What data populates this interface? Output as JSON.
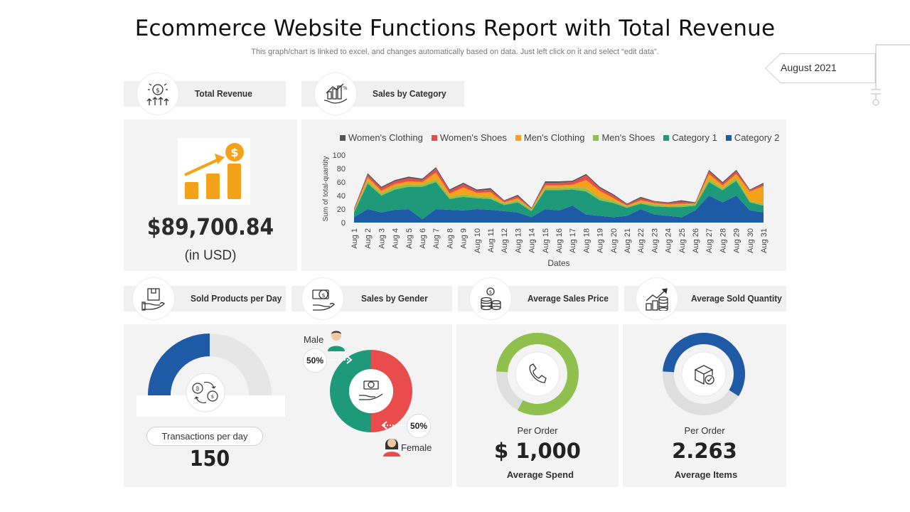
{
  "header": {
    "title": "Ecommerce Website Functions Report with Total Revenue",
    "subtitle": "This graph/chart is linked to excel, and changes automatically based on data. Just left click on it and select “edit data”.",
    "date_tag": "August 2021"
  },
  "sections": {
    "total_revenue": "Total Revenue",
    "sales_by_category": "Sales by Category",
    "sold_products_per_day": "Sold Products per Day",
    "sales_by_gender": "Sales by Gender",
    "average_sales_price": "Average Sales Price",
    "average_sold_quantity": "Average Sold Quantity"
  },
  "revenue": {
    "value": "$89,700.84",
    "unit": "(in USD)"
  },
  "transactions": {
    "label": "Transactions per day",
    "value": "150",
    "gauge_fraction": 0.5
  },
  "gender": {
    "male_label": "Male",
    "male_pct": "50%",
    "male_value": 50,
    "female_label": "Female",
    "female_pct": "50%",
    "female_value": 50,
    "colors": {
      "male": "#1e9a7a",
      "female": "#e84c4c"
    }
  },
  "avg_price": {
    "per": "Per Order",
    "value": "$ 1,000",
    "label": "Average Spend",
    "ring_fraction": 0.82,
    "color": "#8fbf4d"
  },
  "avg_qty": {
    "per": "Per Order",
    "value": "2.263",
    "label": "Average Items",
    "ring_fraction": 0.58,
    "color": "#1f5aa6"
  },
  "chart_data": {
    "type": "area",
    "stacked": true,
    "x": [
      "Aug 1",
      "Aug 2",
      "Aug 3",
      "Aug 4",
      "Aug 5",
      "Aug 6",
      "Aug 7",
      "Aug 8",
      "Aug 9",
      "Aug 10",
      "Aug 11",
      "Aug 12",
      "Aug 13",
      "Aug 14",
      "Aug 15",
      "Aug 16",
      "Aug 17",
      "Aug 18",
      "Aug 19",
      "Aug 20",
      "Aug 21",
      "Aug 22",
      "Aug 23",
      "Aug 24",
      "Aug 25",
      "Aug 26",
      "Aug 27",
      "Aug 28",
      "Aug 29",
      "Aug 30",
      "Aug 31"
    ],
    "xlabel": "Dates",
    "ylabel": "Sum of total-quantity",
    "ylim": [
      0,
      100
    ],
    "yticks": [
      0,
      20,
      40,
      60,
      80,
      100
    ],
    "legend_position": "top",
    "series": [
      {
        "name": "Category 2",
        "color": "#1f5aa6",
        "values": [
          8,
          20,
          15,
          19,
          20,
          5,
          20,
          19,
          18,
          20,
          19,
          17,
          15,
          8,
          20,
          18,
          25,
          12,
          10,
          8,
          10,
          20,
          12,
          10,
          8,
          18,
          40,
          30,
          40,
          18,
          15
        ]
      },
      {
        "name": "Category 1",
        "color": "#1e9a7a",
        "values": [
          7,
          38,
          25,
          30,
          33,
          48,
          40,
          16,
          20,
          16,
          16,
          9,
          15,
          9,
          28,
          30,
          24,
          34,
          23,
          21,
          12,
          8,
          12,
          13,
          15,
          7,
          20,
          18,
          22,
          12,
          10
        ]
      },
      {
        "name": "Men's Shoes",
        "color": "#8fbf4d",
        "values": [
          2,
          4,
          3,
          4,
          4,
          3,
          4,
          3,
          4,
          3,
          3,
          2,
          3,
          2,
          3,
          3,
          3,
          5,
          4,
          3,
          2,
          2,
          3,
          2,
          3,
          2,
          4,
          3,
          4,
          2,
          3
        ]
      },
      {
        "name": "Men's Clothing",
        "color": "#f5a21b",
        "values": [
          1,
          5,
          4,
          4,
          4,
          4,
          10,
          5,
          10,
          5,
          7,
          2,
          3,
          1,
          4,
          4,
          4,
          12,
          10,
          4,
          1,
          3,
          2,
          2,
          2,
          1,
          8,
          4,
          6,
          14,
          26
        ]
      },
      {
        "name": "Women's Shoes",
        "color": "#e84c4c",
        "values": [
          2,
          4,
          4,
          4,
          5,
          3,
          6,
          4,
          5,
          3,
          4,
          2,
          3,
          1,
          4,
          4,
          4,
          7,
          4,
          4,
          2,
          3,
          2,
          2,
          3,
          1,
          4,
          3,
          4,
          2,
          3
        ]
      },
      {
        "name": "Women's Clothing",
        "color": "#555555",
        "values": [
          1,
          2,
          2,
          2,
          2,
          2,
          2,
          2,
          2,
          2,
          2,
          1,
          2,
          1,
          2,
          2,
          2,
          2,
          2,
          2,
          1,
          2,
          1,
          1,
          2,
          1,
          2,
          2,
          2,
          1,
          2
        ]
      }
    ],
    "legend_order": [
      "Women's Clothing",
      "Women's Shoes",
      "Men's Clothing",
      "Men's Shoes",
      "Category 1",
      "Category 2"
    ]
  }
}
